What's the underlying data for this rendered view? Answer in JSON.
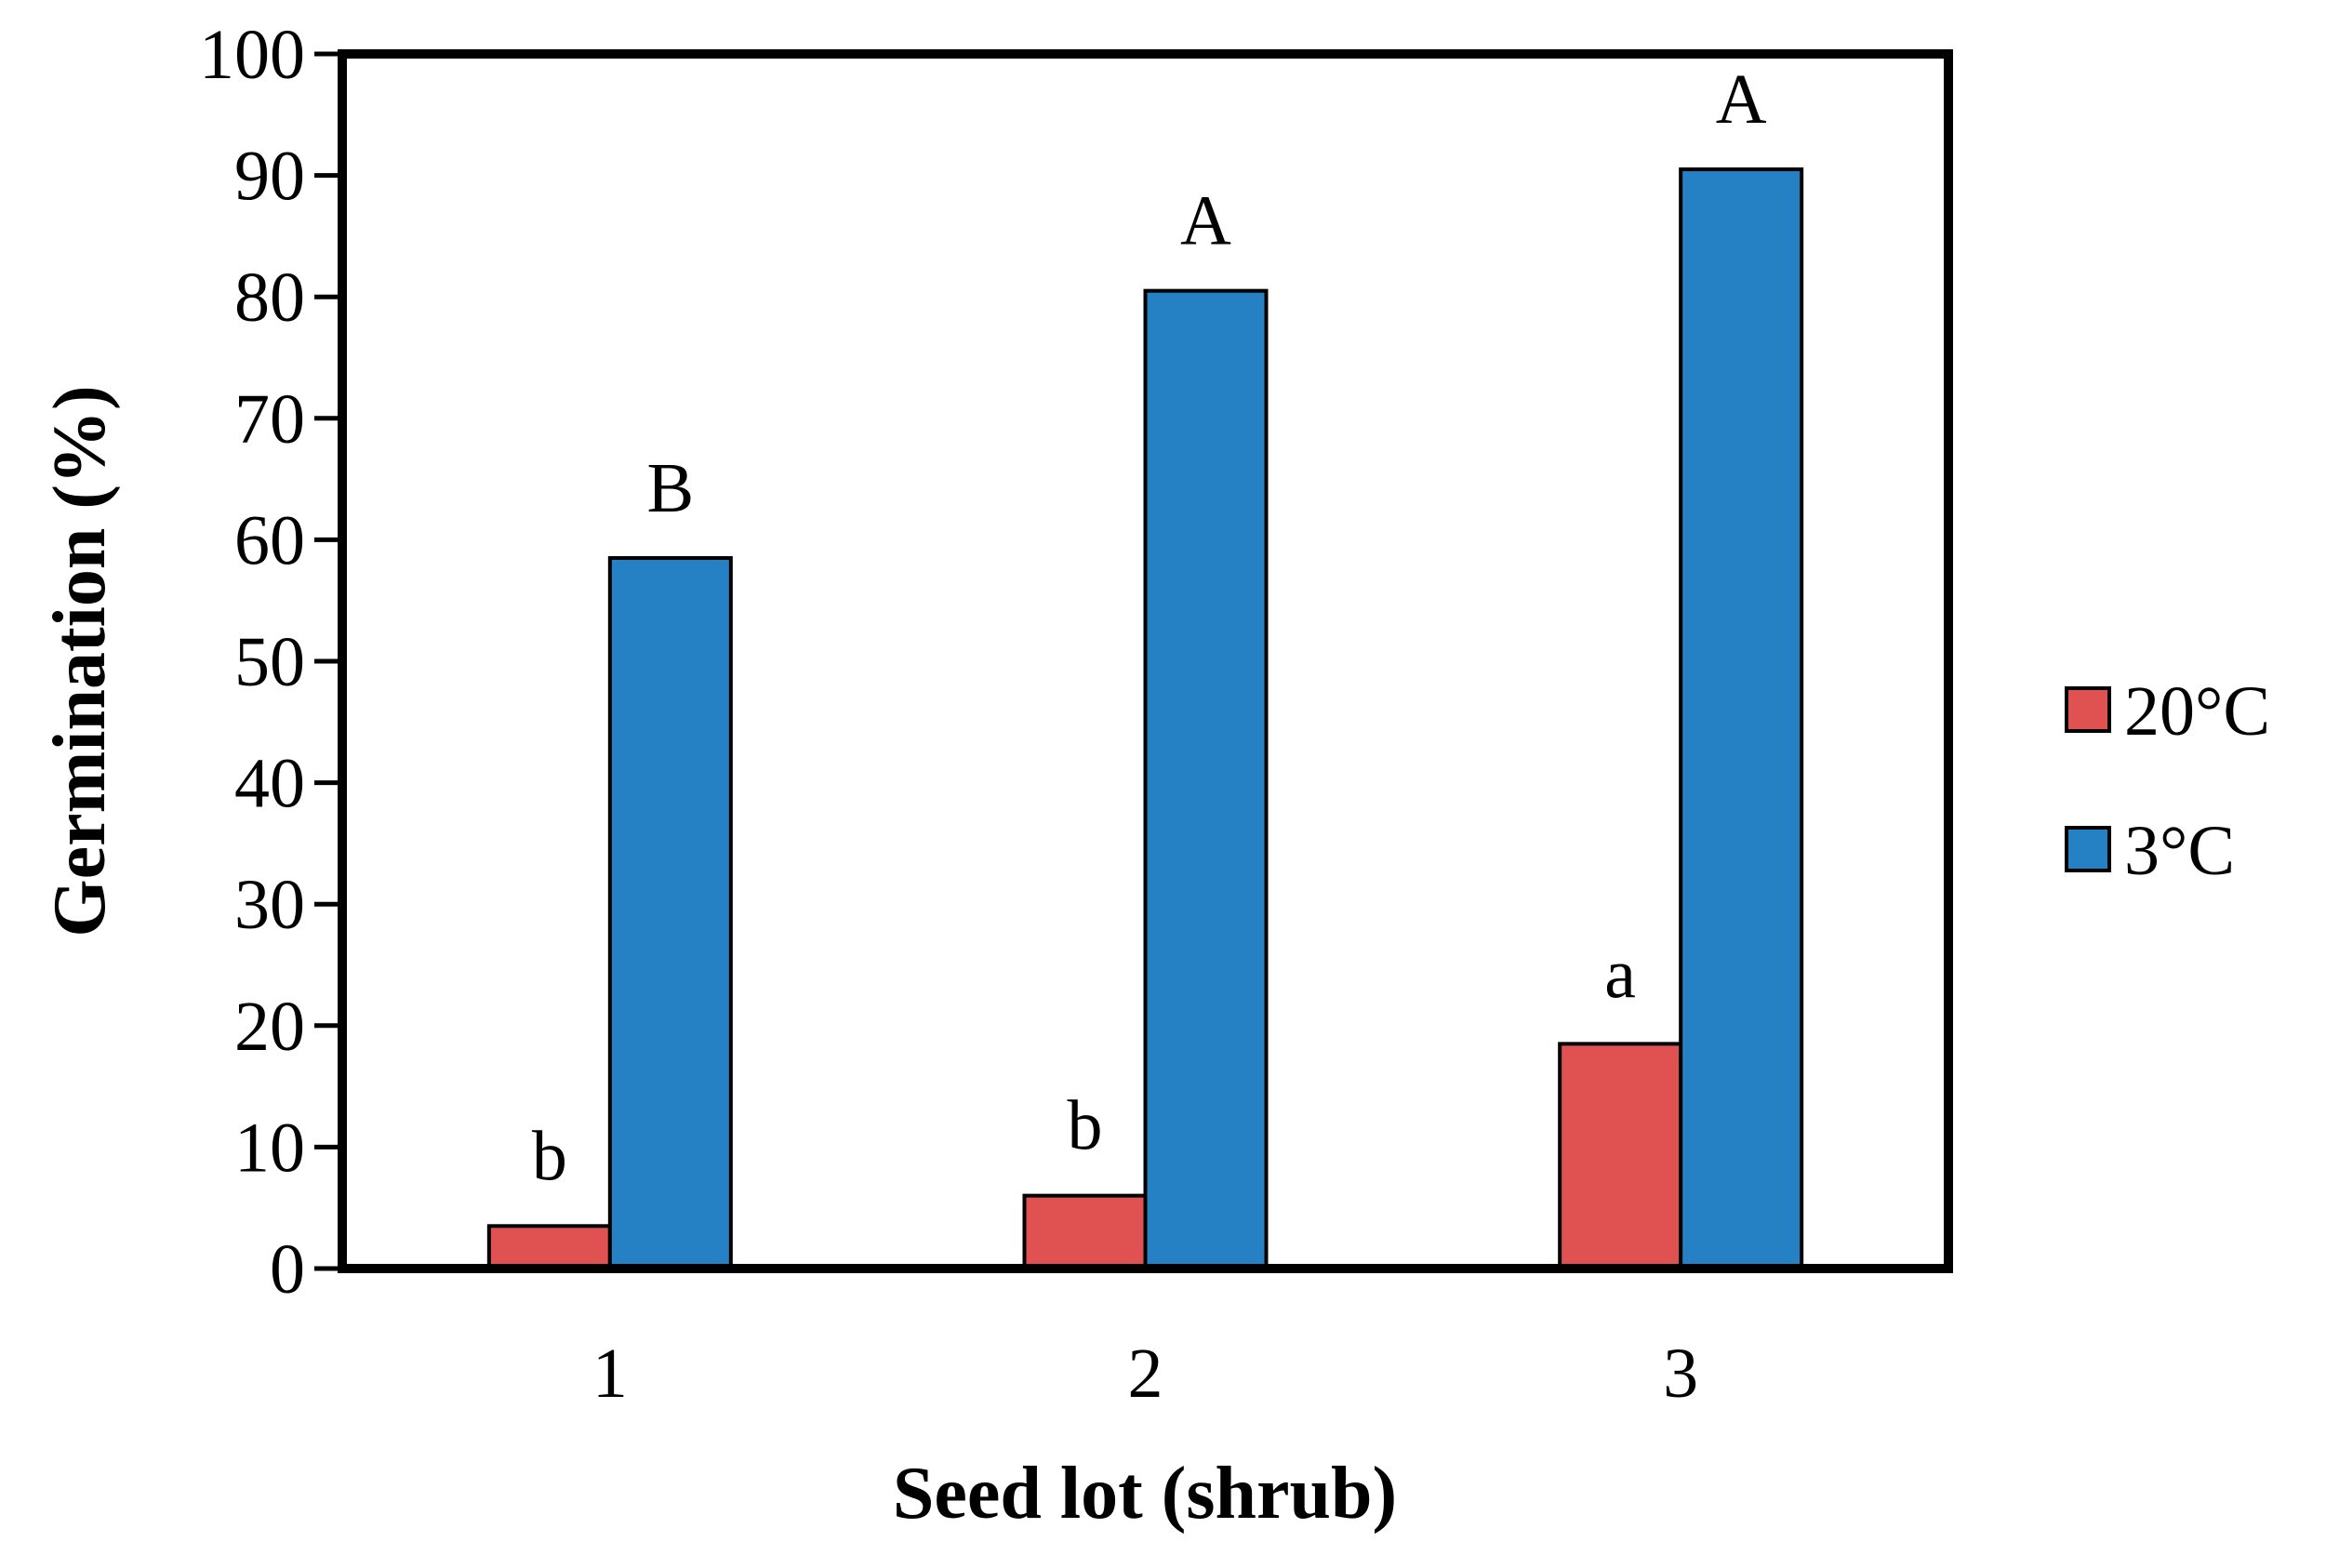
{
  "chart_data": {
    "type": "bar",
    "title": "",
    "xlabel": "Seed lot (shrub)",
    "ylabel": "Germination (%)",
    "ylim": [
      0,
      100
    ],
    "yticks": [
      0,
      10,
      20,
      30,
      40,
      50,
      60,
      70,
      80,
      90,
      100
    ],
    "ytick_labels": [
      "0",
      "10",
      "20",
      "30",
      "40",
      "50",
      "60",
      "70",
      "80",
      "90",
      "100"
    ],
    "categories": [
      "1",
      "2",
      "3"
    ],
    "series": [
      {
        "name": "20°C",
        "color": "#e05252",
        "values": [
          3.5,
          6,
          18.5
        ],
        "labels": [
          "b",
          "b",
          "a"
        ]
      },
      {
        "name": "3°C",
        "color": "#2581c4",
        "values": [
          58.5,
          80.5,
          90.5
        ],
        "labels": [
          "B",
          "A",
          "A"
        ]
      }
    ],
    "grid": false,
    "legend_position": "right"
  }
}
